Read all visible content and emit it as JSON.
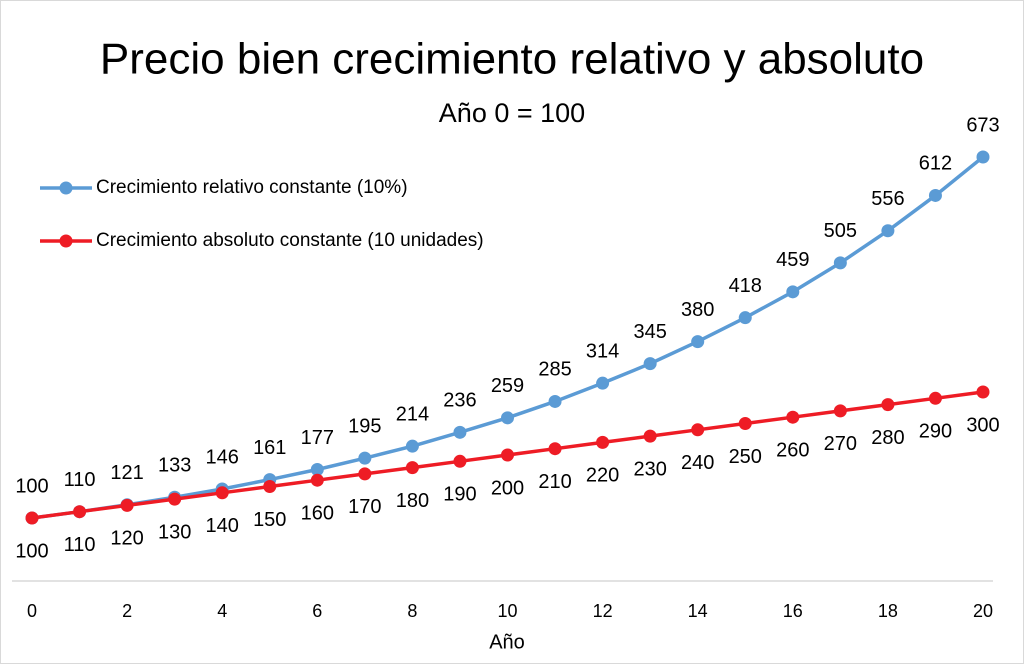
{
  "chart_data": {
    "type": "line",
    "title": "Precio bien crecimiento relativo y absoluto",
    "subtitle": "Año 0 = 100",
    "xlabel": "Año",
    "x": [
      0,
      1,
      2,
      3,
      4,
      5,
      6,
      7,
      8,
      9,
      10,
      11,
      12,
      13,
      14,
      15,
      16,
      17,
      18,
      19,
      20
    ],
    "xlim": [
      0,
      20
    ],
    "xticks": [
      0,
      2,
      4,
      6,
      8,
      10,
      12,
      14,
      16,
      18,
      20
    ],
    "ylim": [
      0,
      800
    ],
    "legend": "upper left",
    "series": [
      {
        "name": "Crecimiento relativo constante (10%)",
        "color": "#5b9bd5",
        "label_color": "#255e91",
        "label_position": "above",
        "values": [
          100,
          110,
          121,
          133,
          146,
          161,
          177,
          195,
          214,
          236,
          259,
          285,
          314,
          345,
          380,
          418,
          459,
          505,
          556,
          612,
          673
        ]
      },
      {
        "name": "Crecimiento absoluto constante (10 unidades)",
        "color": "#ee1c25",
        "label_color": "#c00000",
        "label_position": "below",
        "values": [
          100,
          110,
          120,
          130,
          140,
          150,
          160,
          170,
          180,
          190,
          200,
          210,
          220,
          230,
          240,
          250,
          260,
          270,
          280,
          290,
          300
        ]
      }
    ]
  }
}
